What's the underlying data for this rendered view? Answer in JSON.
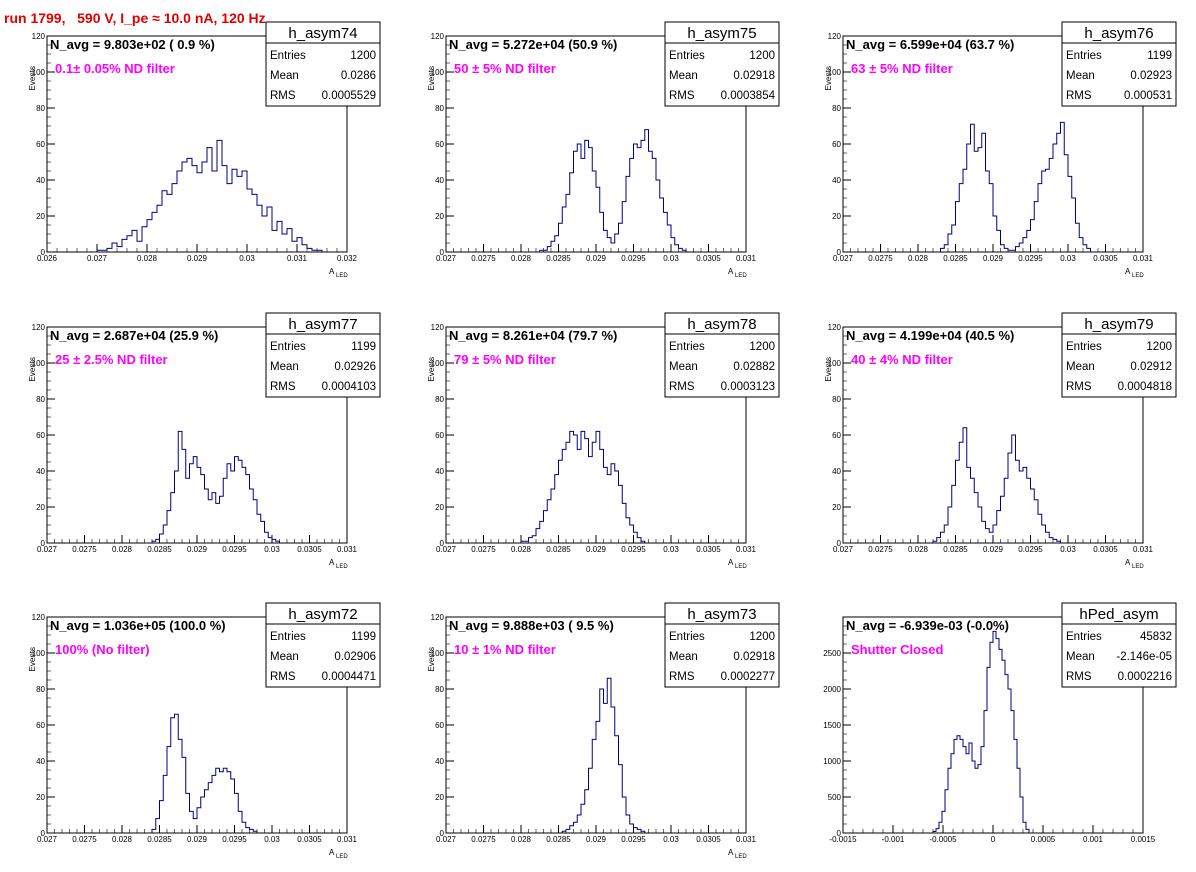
{
  "title": "run 1799,   590 V, I_pe ≈ 10.0 nA, 120 Hz",
  "colors": {
    "title": "#e00000",
    "hist": "#000080",
    "filter_text": "#ff00ff"
  },
  "chart_data": [
    {
      "type": "bar",
      "name": "h_asym74",
      "ylabel": "Events",
      "xlabel_main": "A",
      "xlabel_sub": "LED",
      "navg": "N_avg = 9.803e+02 ( 0.9 %)",
      "filter": "0.1± 0.05% ND filter",
      "stats": {
        "entries": "1200",
        "mean": "0.0286",
        "rms": "0.0005529"
      },
      "xlim": [
        0.026,
        0.032
      ],
      "ylim": [
        0,
        120
      ],
      "xticks": [
        "0.026",
        "0.027",
        "0.028",
        "0.029",
        "0.03",
        "0.031",
        "0.032"
      ],
      "yticks": [
        "0",
        "20",
        "40",
        "60",
        "80",
        "100",
        "120"
      ],
      "bin_start": 0.027,
      "bin_width": 0.0001,
      "values": [
        1,
        1,
        2,
        5,
        3,
        7,
        9,
        12,
        6,
        14,
        18,
        22,
        26,
        34,
        32,
        38,
        45,
        50,
        52,
        48,
        44,
        50,
        58,
        45,
        62,
        48,
        38,
        46,
        42,
        45,
        35,
        32,
        26,
        20,
        25,
        12,
        17,
        10,
        13,
        6,
        8,
        4,
        2,
        1,
        1
      ]
    },
    {
      "type": "bar",
      "name": "h_asym75",
      "ylabel": "Events",
      "xlabel_main": "A",
      "xlabel_sub": "LED",
      "navg": "N_avg = 5.272e+04 (50.9 %)",
      "filter": "50 ± 5% ND filter",
      "stats": {
        "entries": "1200",
        "mean": "0.02918",
        "rms": "0.0003854"
      },
      "xlim": [
        0.027,
        0.031
      ],
      "ylim": [
        0,
        120
      ],
      "xticks": [
        "0.027",
        "0.0275",
        "0.028",
        "0.0285",
        "0.029",
        "0.0295",
        "0.03",
        "0.0305",
        "0.031"
      ],
      "yticks": [
        "0",
        "20",
        "40",
        "60",
        "80",
        "100",
        "120"
      ],
      "bin_start": 0.02825,
      "bin_width": 5e-05,
      "values": [
        1,
        1,
        3,
        6,
        9,
        16,
        25,
        32,
        44,
        56,
        60,
        52,
        62,
        58,
        45,
        36,
        22,
        12,
        8,
        5,
        10,
        16,
        28,
        42,
        52,
        60,
        58,
        62,
        68,
        56,
        52,
        40,
        30,
        22,
        15,
        8,
        4,
        2,
        1
      ]
    },
    {
      "type": "bar",
      "name": "h_asym76",
      "ylabel": "Events",
      "xlabel_main": "A",
      "xlabel_sub": "LED",
      "navg": "N_avg = 6.599e+04 (63.7 %)",
      "filter": "63 ± 5% ND filter",
      "stats": {
        "entries": "1199",
        "mean": "0.02923",
        "rms": "0.000531"
      },
      "xlim": [
        0.027,
        0.031
      ],
      "ylim": [
        0,
        120
      ],
      "xticks": [
        "0.027",
        "0.0275",
        "0.028",
        "0.0285",
        "0.029",
        "0.0295",
        "0.03",
        "0.0305",
        "0.031"
      ],
      "yticks": [
        "0",
        "20",
        "40",
        "60",
        "80",
        "100",
        "120"
      ],
      "bin_start": 0.0283,
      "bin_width": 5e-05,
      "values": [
        2,
        4,
        10,
        15,
        28,
        38,
        46,
        60,
        71,
        56,
        58,
        66,
        45,
        38,
        20,
        12,
        4,
        2,
        1,
        1,
        3,
        5,
        8,
        12,
        18,
        28,
        38,
        45,
        46,
        52,
        60,
        66,
        72,
        54,
        42,
        30,
        16,
        8,
        4,
        2
      ]
    },
    {
      "type": "bar",
      "name": "h_asym77",
      "ylabel": "Events",
      "xlabel_main": "A",
      "xlabel_sub": "LED",
      "navg": "N_avg = 2.687e+04 (25.9 %)",
      "filter": "25 ± 2.5% ND filter",
      "stats": {
        "entries": "1199",
        "mean": "0.02926",
        "rms": "0.0004103"
      },
      "xlim": [
        0.027,
        0.031
      ],
      "ylim": [
        0,
        120
      ],
      "xticks": [
        "0.027",
        "0.0275",
        "0.028",
        "0.0285",
        "0.029",
        "0.0295",
        "0.03",
        "0.0305",
        "0.031"
      ],
      "yticks": [
        "0",
        "20",
        "40",
        "60",
        "80",
        "100",
        "120"
      ],
      "bin_start": 0.0284,
      "bin_width": 5e-05,
      "values": [
        1,
        2,
        5,
        10,
        18,
        28,
        40,
        62,
        52,
        36,
        44,
        48,
        42,
        38,
        30,
        24,
        28,
        22,
        26,
        36,
        44,
        40,
        48,
        46,
        42,
        38,
        30,
        24,
        16,
        12,
        6,
        3,
        2,
        1
      ]
    },
    {
      "type": "bar",
      "name": "h_asym78",
      "ylabel": "Events",
      "xlabel_main": "A",
      "xlabel_sub": "LED",
      "navg": "N_avg = 8.261e+04 (79.7 %)",
      "filter": "79 ± 5% ND filter",
      "stats": {
        "entries": "1200",
        "mean": "0.02882",
        "rms": "0.0003123"
      },
      "xlim": [
        0.027,
        0.031
      ],
      "ylim": [
        0,
        120
      ],
      "xticks": [
        "0.027",
        "0.0275",
        "0.028",
        "0.0285",
        "0.029",
        "0.0295",
        "0.03",
        "0.0305",
        "0.031"
      ],
      "yticks": [
        "0",
        "20",
        "40",
        "60",
        "80",
        "100",
        "120"
      ],
      "bin_start": 0.028,
      "bin_width": 5e-05,
      "values": [
        1,
        1,
        3,
        4,
        8,
        12,
        18,
        24,
        30,
        38,
        46,
        52,
        56,
        62,
        60,
        52,
        62,
        58,
        48,
        56,
        62,
        52,
        42,
        38,
        44,
        40,
        32,
        22,
        14,
        10,
        6,
        3,
        1
      ]
    },
    {
      "type": "bar",
      "name": "h_asym79",
      "ylabel": "Events",
      "xlabel_main": "A",
      "xlabel_sub": "LED",
      "navg": "N_avg = 4.199e+04 (40.5 %)",
      "filter": "40 ± 4% ND filter",
      "stats": {
        "entries": "1200",
        "mean": "0.02912",
        "rms": "0.0004818"
      },
      "xlim": [
        0.027,
        0.031
      ],
      "ylim": [
        0,
        120
      ],
      "xticks": [
        "0.027",
        "0.0275",
        "0.028",
        "0.0285",
        "0.029",
        "0.0295",
        "0.03",
        "0.0305",
        "0.031"
      ],
      "yticks": [
        "0",
        "20",
        "40",
        "60",
        "80",
        "100",
        "120"
      ],
      "bin_start": 0.0282,
      "bin_width": 5e-05,
      "values": [
        1,
        3,
        6,
        10,
        20,
        32,
        46,
        56,
        64,
        42,
        36,
        28,
        20,
        12,
        8,
        6,
        10,
        18,
        26,
        36,
        50,
        60,
        46,
        40,
        42,
        36,
        30,
        24,
        16,
        10,
        6,
        3,
        2,
        1
      ]
    },
    {
      "type": "bar",
      "name": "h_asym72",
      "ylabel": "Events",
      "xlabel_main": "A",
      "xlabel_sub": "LED",
      "navg": "N_avg = 1.036e+05 (100.0 %)",
      "filter": "100% (No filter)",
      "stats": {
        "entries": "1199",
        "mean": "0.02906",
        "rms": "0.0004471"
      },
      "xlim": [
        0.027,
        0.031
      ],
      "ylim": [
        0,
        120
      ],
      "xticks": [
        "0.027",
        "0.0275",
        "0.028",
        "0.0285",
        "0.029",
        "0.0295",
        "0.03",
        "0.0305",
        "0.031"
      ],
      "yticks": [
        "0",
        "20",
        "40",
        "60",
        "80",
        "100",
        "120"
      ],
      "bin_start": 0.0284,
      "bin_width": 5e-05,
      "values": [
        2,
        8,
        18,
        32,
        48,
        64,
        66,
        52,
        42,
        22,
        12,
        8,
        14,
        20,
        24,
        28,
        32,
        36,
        34,
        36,
        34,
        30,
        22,
        12,
        6,
        3,
        2,
        1
      ]
    },
    {
      "type": "bar",
      "name": "h_asym73",
      "ylabel": "Events",
      "xlabel_main": "A",
      "xlabel_sub": "LED",
      "navg": "N_avg = 9.888e+03 ( 9.5 %)",
      "filter": "10 ± 1% ND filter",
      "stats": {
        "entries": "1200",
        "mean": "0.02918",
        "rms": "0.0002277"
      },
      "xlim": [
        0.027,
        0.031
      ],
      "ylim": [
        0,
        120
      ],
      "xticks": [
        "0.027",
        "0.0275",
        "0.028",
        "0.0285",
        "0.029",
        "0.0295",
        "0.03",
        "0.0305",
        "0.031"
      ],
      "yticks": [
        "0",
        "20",
        "40",
        "60",
        "80",
        "100",
        "120"
      ],
      "bin_start": 0.02855,
      "bin_width": 5e-05,
      "values": [
        1,
        2,
        4,
        6,
        10,
        16,
        24,
        36,
        52,
        62,
        80,
        72,
        86,
        70,
        54,
        38,
        20,
        10,
        5,
        3,
        2,
        1
      ]
    },
    {
      "type": "bar",
      "name": "hPed_asym",
      "ylabel": "",
      "xlabel_main": "",
      "xlabel_sub": "",
      "navg": "N_avg = -6.939e-03 (-0.0%)",
      "filter": "Shutter Closed",
      "stats": {
        "entries": "45832",
        "mean": "-2.146e-05",
        "rms": "0.0002216"
      },
      "xlim": [
        -0.0015,
        0.0015
      ],
      "ylim": [
        0,
        3000
      ],
      "xticks": [
        "-0.0015",
        "-0.001",
        "-0.0005",
        "0",
        "0.0005",
        "0.001",
        "0.0015"
      ],
      "yticks": [
        "0",
        "500",
        "1000",
        "1500",
        "2000",
        "2500"
      ],
      "bin_start": -0.0006,
      "bin_width": 3e-05,
      "values": [
        20,
        60,
        150,
        300,
        600,
        900,
        1100,
        1300,
        1350,
        1300,
        1200,
        1100,
        1250,
        1000,
        900,
        950,
        1200,
        1700,
        2300,
        2650,
        2800,
        2700,
        2550,
        2400,
        2200,
        2000,
        1700,
        1300,
        900,
        500,
        150,
        50
      ]
    }
  ],
  "stats_labels": {
    "entries": "Entries",
    "mean": "Mean",
    "rms": "RMS"
  }
}
